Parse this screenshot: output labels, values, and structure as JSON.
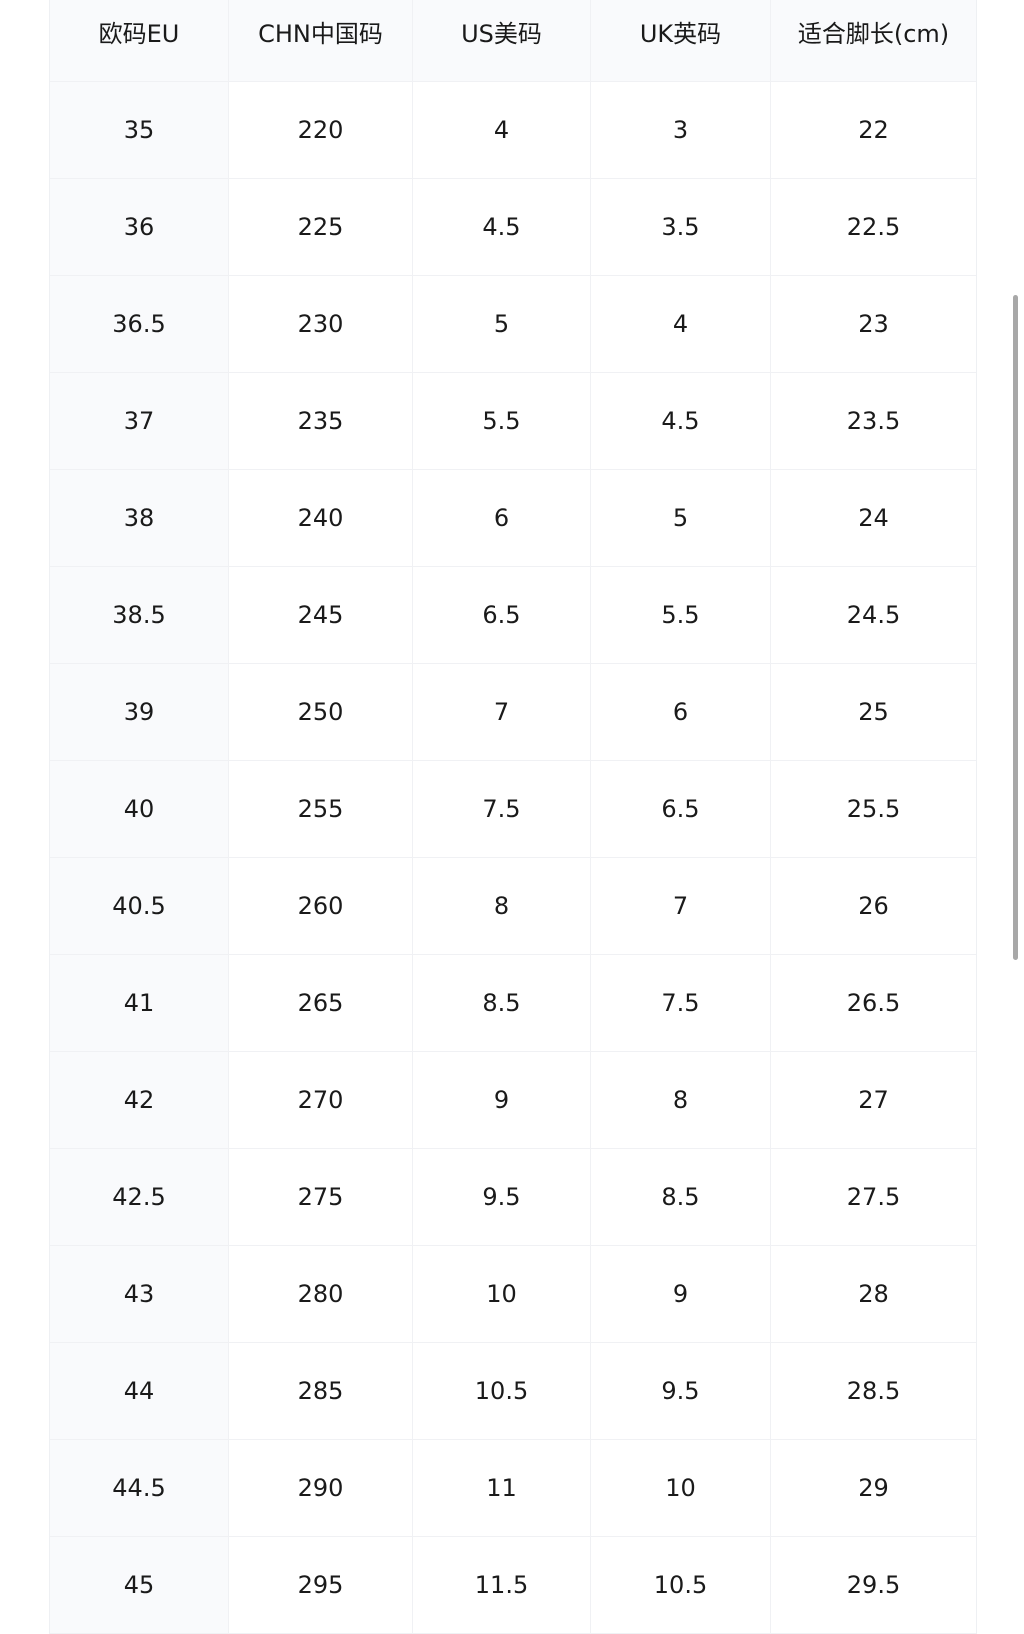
{
  "table": {
    "headers": [
      "欧码EU",
      "CHN中国码",
      "US美码",
      "UK英码",
      "适合脚长(cm)"
    ],
    "rows": [
      [
        "35",
        "220",
        "4",
        "3",
        "22"
      ],
      [
        "36",
        "225",
        "4.5",
        "3.5",
        "22.5"
      ],
      [
        "36.5",
        "230",
        "5",
        "4",
        "23"
      ],
      [
        "37",
        "235",
        "5.5",
        "4.5",
        "23.5"
      ],
      [
        "38",
        "240",
        "6",
        "5",
        "24"
      ],
      [
        "38.5",
        "245",
        "6.5",
        "5.5",
        "24.5"
      ],
      [
        "39",
        "250",
        "7",
        "6",
        "25"
      ],
      [
        "40",
        "255",
        "7.5",
        "6.5",
        "25.5"
      ],
      [
        "40.5",
        "260",
        "8",
        "7",
        "26"
      ],
      [
        "41",
        "265",
        "8.5",
        "7.5",
        "26.5"
      ],
      [
        "42",
        "270",
        "9",
        "8",
        "27"
      ],
      [
        "42.5",
        "275",
        "9.5",
        "8.5",
        "27.5"
      ],
      [
        "43",
        "280",
        "10",
        "9",
        "28"
      ],
      [
        "44",
        "285",
        "10.5",
        "9.5",
        "28.5"
      ],
      [
        "44.5",
        "290",
        "11",
        "10",
        "29"
      ],
      [
        "45",
        "295",
        "11.5",
        "10.5",
        "29.5"
      ]
    ]
  }
}
